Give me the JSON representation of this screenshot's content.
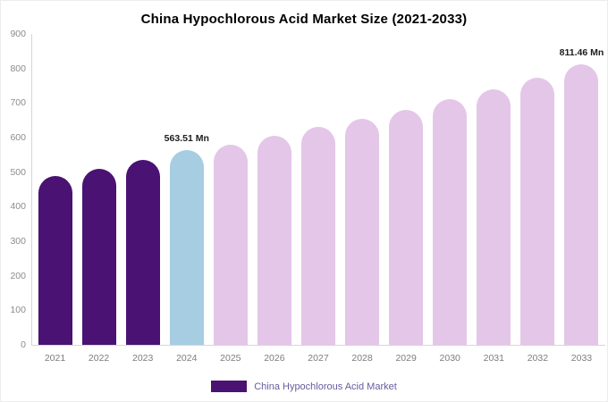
{
  "chart_data": {
    "type": "bar",
    "title": "China Hypochlorous Acid Market Size (2021-2033)",
    "xlabel": "",
    "ylabel": "",
    "categories": [
      "2021",
      "2022",
      "2023",
      "2024",
      "2025",
      "2026",
      "2027",
      "2028",
      "2029",
      "2030",
      "2031",
      "2032",
      "2033"
    ],
    "values": [
      490,
      510,
      535,
      563.51,
      580,
      605,
      630,
      655,
      680,
      710,
      740,
      772,
      811.46
    ],
    "unit": "Mn",
    "ylim": [
      0,
      900
    ],
    "ytick_step": 100,
    "grid": false,
    "legend": {
      "label": "China Hypochlorous Acid Market",
      "position": "bottom"
    },
    "annotations": [
      {
        "index": 3,
        "text": "563.51 Mn"
      },
      {
        "index": 12,
        "text": "811.46 Mn"
      }
    ],
    "colors": {
      "past": "#4a1272",
      "current": "#a6cde2",
      "forecast": "#e4c6e8"
    },
    "bar_roles": [
      "past",
      "past",
      "past",
      "current",
      "forecast",
      "forecast",
      "forecast",
      "forecast",
      "forecast",
      "forecast",
      "forecast",
      "forecast",
      "forecast"
    ]
  }
}
